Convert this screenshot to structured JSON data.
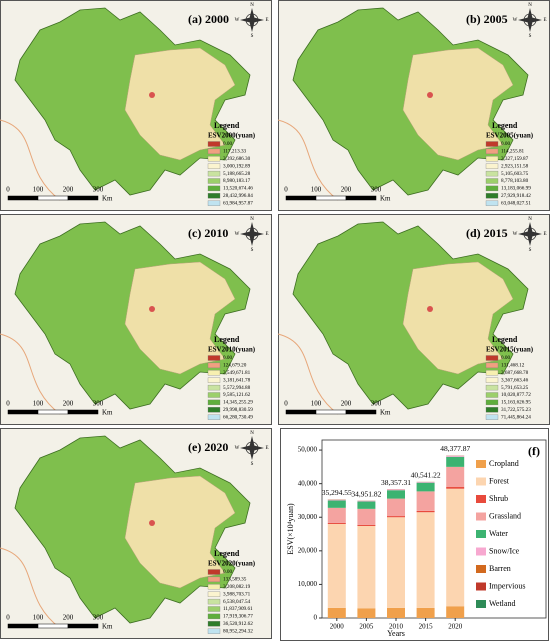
{
  "maps": [
    {
      "label": "(a) 2000",
      "legend_title": "Legend",
      "legend_subtitle": "ESV2000(yuan)",
      "legend_items": [
        "0.00",
        "117,213.33",
        "2,392,686.30",
        "3,000,192.89",
        "5,188,665.28",
        "8,980,183.17",
        "13,520,674.46",
        "28,432,996.84",
        "63,984,957.87"
      ]
    },
    {
      "label": "(b) 2005",
      "legend_title": "Legend",
      "legend_subtitle": "ESV2005(yuan)",
      "legend_items": [
        "0.00",
        "114,255.81",
        "2,327,159.87",
        "2,923,151.58",
        "5,105,603.75",
        "8,778,103.80",
        "13,183,066.99",
        "27,929,918.42",
        "63,048,027.51"
      ]
    },
    {
      "label": "(c) 2010",
      "legend_title": "Legend",
      "legend_subtitle": "ESV2010(yuan)",
      "legend_items": [
        "0.00",
        "124,679.20",
        "2,549,671.81",
        "3,181,641.78",
        "5,572,994.88",
        "9,585,121.62",
        "14,345,255.29",
        "29,998,830.59",
        "66,280,730.49"
      ]
    },
    {
      "label": "(d) 2015",
      "legend_title": "Legend",
      "legend_subtitle": "ESV2015(yuan)",
      "legend_items": [
        "0.00",
        "131,468.12",
        "2,687,668.78",
        "3,367,663.46",
        "5,791,653.25",
        "10,020,877.72",
        "15,163,626.95",
        "31,722,575.23",
        "71,445,864.24"
      ]
    },
    {
      "label": "(e) 2020",
      "legend_title": "Legend",
      "legend_subtitle": "ESV2020(yuan)",
      "legend_items": [
        "0.00",
        "133,589.35",
        "3,208,082.19",
        "3,988,703.71",
        "6,538,047.54",
        "11,837,909.61",
        "17,919,306.77",
        "36,520,912.62",
        "80,952,294.32"
      ]
    }
  ],
  "legend_colors": [
    "#c0392b",
    "#f0a080",
    "#f7efb0",
    "#fbf4cf",
    "#c9e3a0",
    "#9ccf6b",
    "#5fae3c",
    "#2f7d2a",
    "#bfe3f0"
  ],
  "compass": {
    "n": "N",
    "s": "S",
    "w": "W",
    "e": "E"
  },
  "scale": {
    "ticks": [
      "0",
      "100",
      "200",
      "300"
    ],
    "unit": "Km"
  },
  "chart_data": {
    "type": "bar",
    "stacked": true,
    "panel_label": "(f)",
    "categories": [
      "2000",
      "2005",
      "2010",
      "2015",
      "2020"
    ],
    "series": [
      {
        "name": "Cropland",
        "color": "#f0a04b",
        "values": [
          3000,
          2900,
          3000,
          3000,
          3500
        ]
      },
      {
        "name": "Forest",
        "color": "#fcd5b0",
        "values": [
          25000,
          24500,
          27000,
          28500,
          35000
        ]
      },
      {
        "name": "Shrub",
        "color": "#e84a3c",
        "values": [
          300,
          300,
          350,
          400,
          500
        ]
      },
      {
        "name": "Grassland",
        "color": "#f4a3a0",
        "values": [
          4500,
          4800,
          5200,
          5800,
          6000
        ]
      },
      {
        "name": "Water",
        "color": "#3cb371",
        "values": [
          2200,
          2200,
          2500,
          2600,
          3000
        ]
      },
      {
        "name": "Snow/Ice",
        "color": "#f7a8d0",
        "values": [
          200,
          200,
          250,
          200,
          300
        ]
      },
      {
        "name": "Barren",
        "color": "#d2691e",
        "values": [
          50,
          30,
          40,
          30,
          40
        ]
      },
      {
        "name": "Impervious",
        "color": "#c0392b",
        "values": [
          30,
          10,
          10,
          8,
          30
        ]
      },
      {
        "name": "Wetland",
        "color": "#2e8b57",
        "values": [
          15,
          12,
          7,
          3,
          8
        ]
      }
    ],
    "total_labels": [
      "35,294.55",
      "34,951.82",
      "38,357.31",
      "40,541.22",
      "48,377.87"
    ],
    "ylim": [
      0,
      53000
    ],
    "yticks": [
      0,
      {
        "value": 10000,
        "label": "10,000"
      },
      {
        "value": 20000,
        "label": "20,000"
      },
      {
        "value": 30000,
        "label": "30,000"
      },
      {
        "value": 40000,
        "label": "40,000"
      },
      {
        "value": 50000,
        "label": "50,000"
      }
    ],
    "xlabel": "Years",
    "ylabel": "ESV(×10⁴yuan)"
  }
}
